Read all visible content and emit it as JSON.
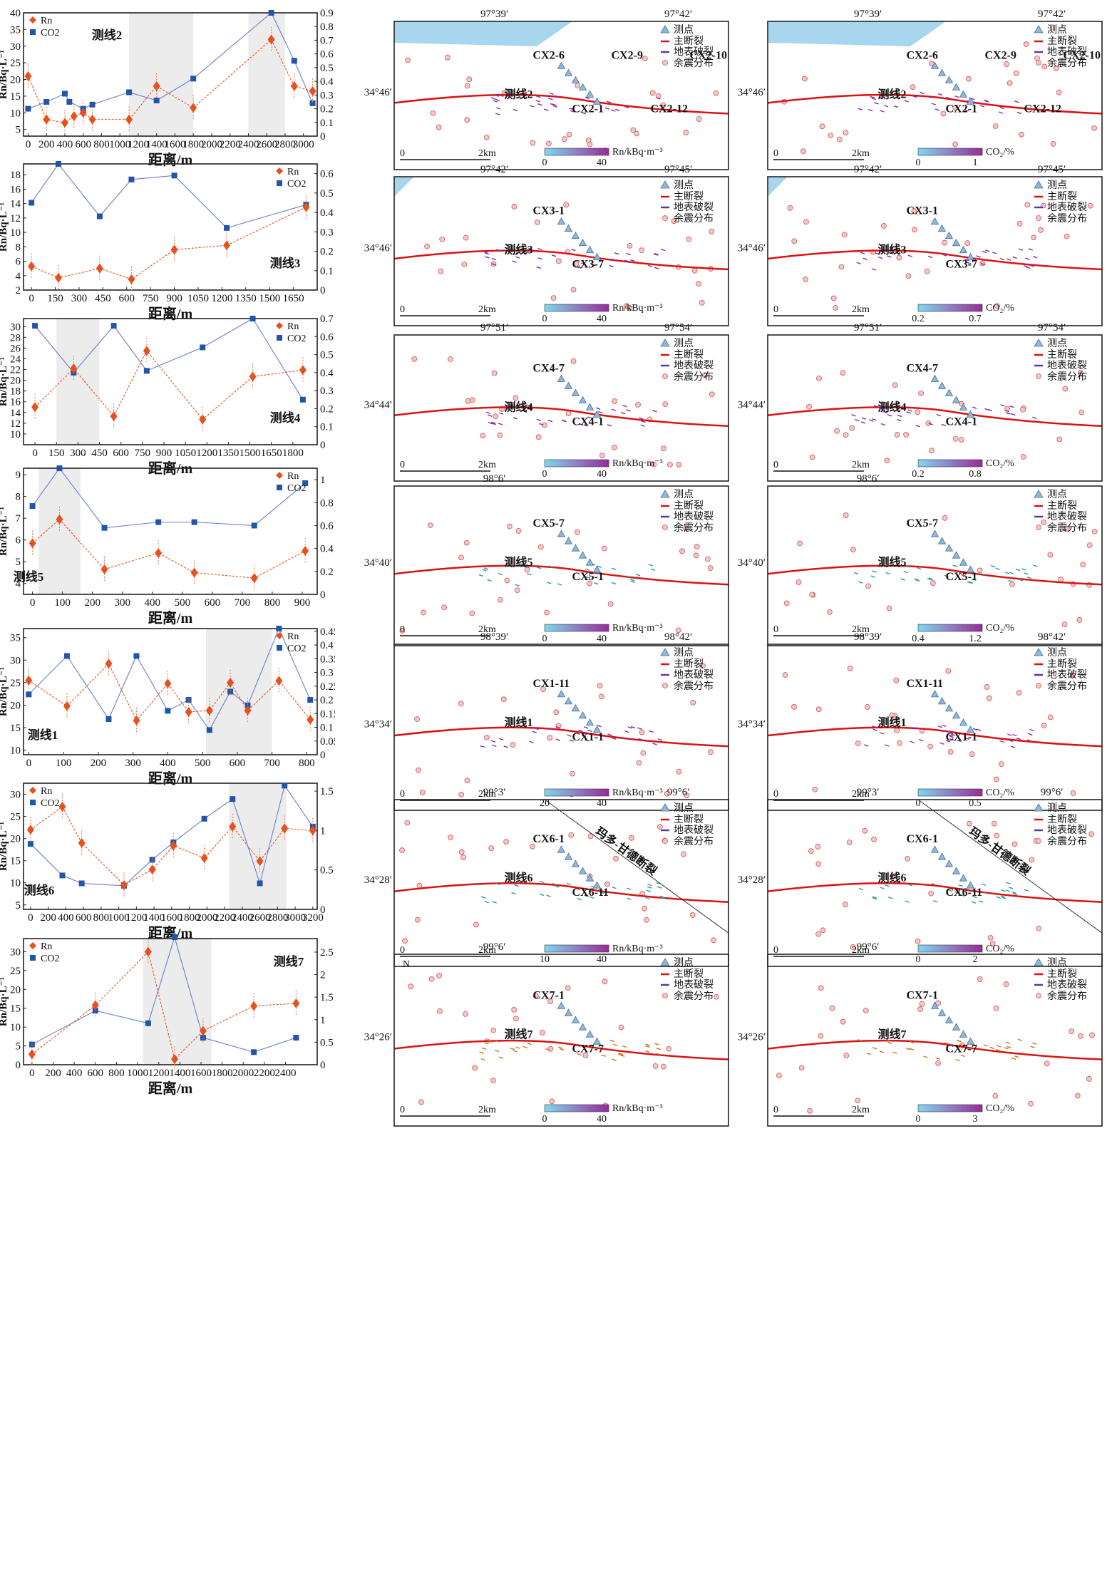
{
  "legend": {
    "rn": "Rn",
    "co2": "CO2"
  },
  "map_legend": {
    "points": "测点",
    "main_fault": "主断裂",
    "surface_rupture": "地表破裂",
    "aftershocks": "余震分布",
    "scale": "2km",
    "scale_zero": "0"
  },
  "colors": {
    "rn": "#e8501e",
    "co2": "#2255a8",
    "fault": "#dd1111",
    "shade": "#d8d8d8",
    "lake": "#a9d6ef",
    "aftershock": "#e89090"
  },
  "chart_data": [
    {
      "type": "line",
      "name": "测线2",
      "xlabel": "距离/m",
      "ylabel": "Rn/Bq·L⁻¹",
      "y2label": "CO₂/%",
      "xlim": [
        -50,
        3150
      ],
      "ylim": [
        3,
        40
      ],
      "y2lim": [
        0,
        0.9
      ],
      "xticks": [
        0,
        200,
        400,
        600,
        800,
        1000,
        1200,
        1400,
        1600,
        1800,
        2000,
        2200,
        2400,
        2600,
        2800,
        3000
      ],
      "yticks": [
        5,
        10,
        15,
        20,
        25,
        30,
        35,
        40
      ],
      "y2ticks": [
        0,
        0.1,
        0.2,
        0.3,
        0.4,
        0.5,
        0.6,
        0.7,
        0.8,
        0.9
      ],
      "shade": [
        [
          1100,
          1800
        ],
        [
          2400,
          2800
        ]
      ],
      "rn_x": [
        0,
        200,
        400,
        500,
        600,
        700,
        1100,
        1400,
        1800,
        2650,
        2900,
        3100
      ],
      "rn_y": [
        21,
        8,
        7,
        9,
        10,
        8,
        8,
        18,
        11.5,
        32,
        18,
        16.5
      ],
      "co2_x": [
        0,
        200,
        400,
        450,
        600,
        700,
        1100,
        1400,
        1800,
        2650,
        2900,
        3100
      ],
      "co2_y": [
        0.2,
        0.25,
        0.31,
        0.25,
        0.2,
        0.23,
        0.32,
        0.26,
        0.42,
        0.9,
        0.55,
        0.24
      ]
    },
    {
      "type": "line",
      "name": "测线3",
      "xlabel": "距离/m",
      "ylabel": "Rn/Bq·L⁻¹",
      "y2label": "CO₂/%",
      "xlim": [
        -50,
        1800
      ],
      "ylim": [
        2,
        19.5
      ],
      "y2lim": [
        0,
        0.65
      ],
      "xticks": [
        0,
        150,
        300,
        450,
        600,
        750,
        900,
        1050,
        1200,
        1350,
        1500,
        1650
      ],
      "yticks": [
        2,
        4,
        6,
        8,
        10,
        12,
        14,
        16,
        18
      ],
      "y2ticks": [
        0,
        0.1,
        0.2,
        0.3,
        0.4,
        0.5,
        0.6
      ],
      "shade": [],
      "rn_x": [
        0,
        170,
        430,
        630,
        900,
        1230,
        1730
      ],
      "rn_y": [
        5.3,
        3.7,
        5,
        3.5,
        7.6,
        8.2,
        13.5
      ],
      "co2_x": [
        0,
        170,
        430,
        630,
        900,
        1230,
        1730
      ],
      "co2_y": [
        0.45,
        0.65,
        0.38,
        0.57,
        0.59,
        0.32,
        0.44
      ]
    },
    {
      "type": "line",
      "name": "测线4",
      "xlabel": "距离/m",
      "ylabel": "Rn/Bq·L⁻¹",
      "y2label": "CO₂/%",
      "xlim": [
        -80,
        1970
      ],
      "ylim": [
        8,
        31.5
      ],
      "y2lim": [
        0,
        0.7
      ],
      "xticks": [
        0,
        150,
        300,
        450,
        600,
        750,
        900,
        1050,
        1200,
        1350,
        1500,
        1650,
        1800
      ],
      "yticks": [
        10,
        12,
        14,
        16,
        18,
        20,
        22,
        24,
        26,
        28,
        30
      ],
      "y2ticks": [
        0,
        0.1,
        0.2,
        0.3,
        0.4,
        0.5,
        0.6,
        0.7
      ],
      "shade": [
        [
          150,
          450
        ]
      ],
      "rn_x": [
        0,
        270,
        550,
        780,
        1170,
        1520,
        1870
      ],
      "rn_y": [
        15,
        22.2,
        13.3,
        25.5,
        12.7,
        20.7,
        21.9
      ],
      "co2_x": [
        0,
        270,
        550,
        780,
        1170,
        1520,
        1870
      ],
      "co2_y": [
        0.66,
        0.4,
        0.66,
        0.41,
        0.54,
        0.7,
        0.25
      ]
    },
    {
      "type": "line",
      "name": "测线5",
      "xlabel": "距离/m",
      "ylabel": "Rn/Bq·L⁻¹",
      "y2label": "CO₂/%",
      "xlim": [
        -30,
        950
      ],
      "ylim": [
        3.5,
        9.3
      ],
      "y2lim": [
        0,
        1.1
      ],
      "xticks": [
        0,
        100,
        200,
        300,
        400,
        500,
        600,
        700,
        800,
        900
      ],
      "yticks": [
        4,
        5,
        6,
        7,
        8,
        9
      ],
      "y2ticks": [
        0,
        0.2,
        0.4,
        0.6,
        0.8,
        1.0
      ],
      "shade": [
        [
          20,
          160
        ]
      ],
      "rn_x": [
        0,
        90,
        240,
        420,
        540,
        740,
        910
      ],
      "rn_y": [
        5.85,
        6.95,
        4.65,
        5.4,
        4.5,
        4.25,
        5.5
      ],
      "co2_x": [
        0,
        90,
        240,
        420,
        540,
        740,
        910
      ],
      "co2_y": [
        0.77,
        1.1,
        0.58,
        0.63,
        0.63,
        0.6,
        0.97
      ]
    },
    {
      "type": "line",
      "name": "测线1",
      "xlabel": "距离/m",
      "ylabel": "Rn/Bq·L⁻¹",
      "y2label": "CO₂/%",
      "xlim": [
        -15,
        830
      ],
      "ylim": [
        9,
        37
      ],
      "y2lim": [
        0,
        0.46
      ],
      "xticks": [
        0,
        100,
        200,
        300,
        400,
        500,
        600,
        700,
        800
      ],
      "yticks": [
        10,
        15,
        20,
        25,
        30,
        35
      ],
      "y2ticks": [
        0,
        0.05,
        0.1,
        0.15,
        0.2,
        0.25,
        0.3,
        0.35,
        0.4,
        0.45
      ],
      "shade": [
        [
          510,
          700
        ]
      ],
      "rn_x": [
        0,
        110,
        230,
        310,
        400,
        460,
        520,
        580,
        630,
        720,
        810
      ],
      "rn_y": [
        25.5,
        19.8,
        29.2,
        16.6,
        24.8,
        18.5,
        18.8,
        25,
        18.8,
        25.4,
        16.8
      ],
      "co2_x": [
        0,
        110,
        230,
        310,
        400,
        460,
        520,
        580,
        630,
        720,
        810
      ],
      "co2_y": [
        0.22,
        0.36,
        0.13,
        0.36,
        0.16,
        0.2,
        0.09,
        0.23,
        0.18,
        0.46,
        0.2
      ]
    },
    {
      "type": "line",
      "name": "测线6",
      "xlabel": "距离/m",
      "ylabel": "Rn/Bq·L⁻¹",
      "y2label": "CO₂/%",
      "xlim": [
        -80,
        3250
      ],
      "ylim": [
        4,
        32.5
      ],
      "y2lim": [
        0,
        1.6
      ],
      "xticks": [
        0,
        200,
        400,
        600,
        800,
        1000,
        1200,
        1400,
        1600,
        1800,
        2000,
        2200,
        2400,
        2600,
        2800,
        3000,
        3200
      ],
      "yticks": [
        5,
        10,
        15,
        20,
        25,
        30
      ],
      "y2ticks": [
        0,
        0.5,
        1.0,
        1.5
      ],
      "shade": [
        [
          2250,
          2900
        ]
      ],
      "rn_x": [
        0,
        360,
        580,
        1060,
        1380,
        1620,
        1970,
        2290,
        2600,
        2880,
        3200
      ],
      "rn_y": [
        22,
        27.2,
        19,
        9.5,
        13,
        18.4,
        15.6,
        22.7,
        14.9,
        22.3,
        21.8
      ],
      "co2_x": [
        0,
        360,
        580,
        1060,
        1380,
        1620,
        1970,
        2290,
        2600,
        2880,
        3200
      ],
      "co2_y": [
        0.83,
        0.43,
        0.33,
        0.3,
        0.63,
        0.85,
        1.15,
        1.4,
        0.33,
        1.57,
        1.05
      ]
    },
    {
      "type": "line",
      "name": "测线7",
      "xlabel": "距离/m",
      "ylabel": "Rn/Bq·L⁻¹",
      "y2label": "CO₂/%",
      "xlim": [
        -80,
        2700
      ],
      "ylim": [
        0,
        33.5
      ],
      "y2lim": [
        0,
        2.8
      ],
      "xticks": [
        0,
        200,
        400,
        600,
        800,
        1000,
        1200,
        1400,
        1600,
        1800,
        2000,
        2200,
        2400
      ],
      "yticks": [
        0,
        5,
        10,
        15,
        20,
        25,
        30
      ],
      "y2ticks": [
        0,
        0.5,
        1.0,
        1.5,
        2.0,
        2.5
      ],
      "shade": [
        [
          1050,
          1700
        ]
      ],
      "rn_x": [
        0,
        600,
        1100,
        1350,
        1620,
        2100,
        2500
      ],
      "rn_y": [
        2.8,
        15.8,
        30,
        1.5,
        9,
        15.6,
        16.3
      ],
      "co2_x": [
        0,
        600,
        1100,
        1350,
        1620,
        2100,
        2500
      ],
      "co2_y": [
        0.45,
        1.2,
        0.92,
        2.83,
        0.6,
        0.28,
        0.6
      ]
    }
  ],
  "maps": [
    {
      "lon": [
        "97°39′",
        "97°42′"
      ],
      "lat": "34°46′",
      "line": "测线2",
      "pts": [
        "CX2-6",
        "CX2-1",
        "CX2-9",
        "CX2-12",
        "CX2-10"
      ],
      "bars": [
        {
          "min": "0",
          "max": "40",
          "unit": "Rn/kBq·m⁻³"
        },
        {
          "min": "0",
          "max": "1",
          "unit": "CO₂/%"
        }
      ]
    },
    {
      "lon": [
        "97°42′",
        "97°45′"
      ],
      "lat": "34°46′",
      "line": "测线3",
      "pts": [
        "CX3-1",
        "CX3-7"
      ],
      "bars": [
        {
          "min": "0",
          "max": "40",
          "unit": "Rn/kBq·m⁻³"
        },
        {
          "min": "0.2",
          "max": "0.7",
          "unit": "CO₂/%"
        }
      ]
    },
    {
      "lon": [
        "97°51′",
        "97°54′"
      ],
      "lat": "34°44′",
      "line": "测线4",
      "pts": [
        "CX4-7",
        "CX4-1"
      ],
      "bars": [
        {
          "min": "0",
          "max": "40",
          "unit": "Rn/kBq·m⁻³"
        },
        {
          "min": "0.2",
          "max": "0.8",
          "unit": "CO₂/%"
        }
      ]
    },
    {
      "lon": [
        "98°6′",
        ""
      ],
      "lat": "34°40′",
      "line": "测线5",
      "pts": [
        "CX5-7",
        "CX5-1"
      ],
      "bars": [
        {
          "min": "0",
          "max": "40",
          "unit": "Rn/kBq·m⁻³"
        },
        {
          "min": "0.4",
          "max": "1.2",
          "unit": "CO₂/%"
        }
      ]
    },
    {
      "lon": [
        "98°39′",
        "98°42′"
      ],
      "lat": "34°34′",
      "line": "测线1",
      "pts": [
        "CX1-11",
        "CX1-1"
      ],
      "bars": [
        {
          "min": "20",
          "max": "40",
          "unit": "Rn/kBq·m⁻³"
        },
        {
          "min": "0",
          "max": "0.5",
          "unit": "CO₂/%"
        }
      ]
    },
    {
      "lon": [
        "99°3′",
        "99°6′"
      ],
      "lat": "34°28′",
      "line": "测线6",
      "pts": [
        "CX6-1",
        "CX6-11"
      ],
      "fault_name": "玛多-甘德断裂",
      "bars": [
        {
          "min": "10",
          "max": "40",
          "unit": "Rn/kBq·m⁻³"
        },
        {
          "min": "0",
          "max": "2",
          "unit": "CO₂/%"
        }
      ]
    },
    {
      "lon": [
        "99°6′",
        ""
      ],
      "lat": "34°26′",
      "line": "测线7",
      "pts": [
        "CX7-1",
        "CX7-7"
      ],
      "north": "N",
      "bars": [
        {
          "min": "0",
          "max": "40",
          "unit": "Rn/kBq·m⁻³"
        },
        {
          "min": "0",
          "max": "3",
          "unit": "CO₂/%"
        }
      ]
    }
  ]
}
